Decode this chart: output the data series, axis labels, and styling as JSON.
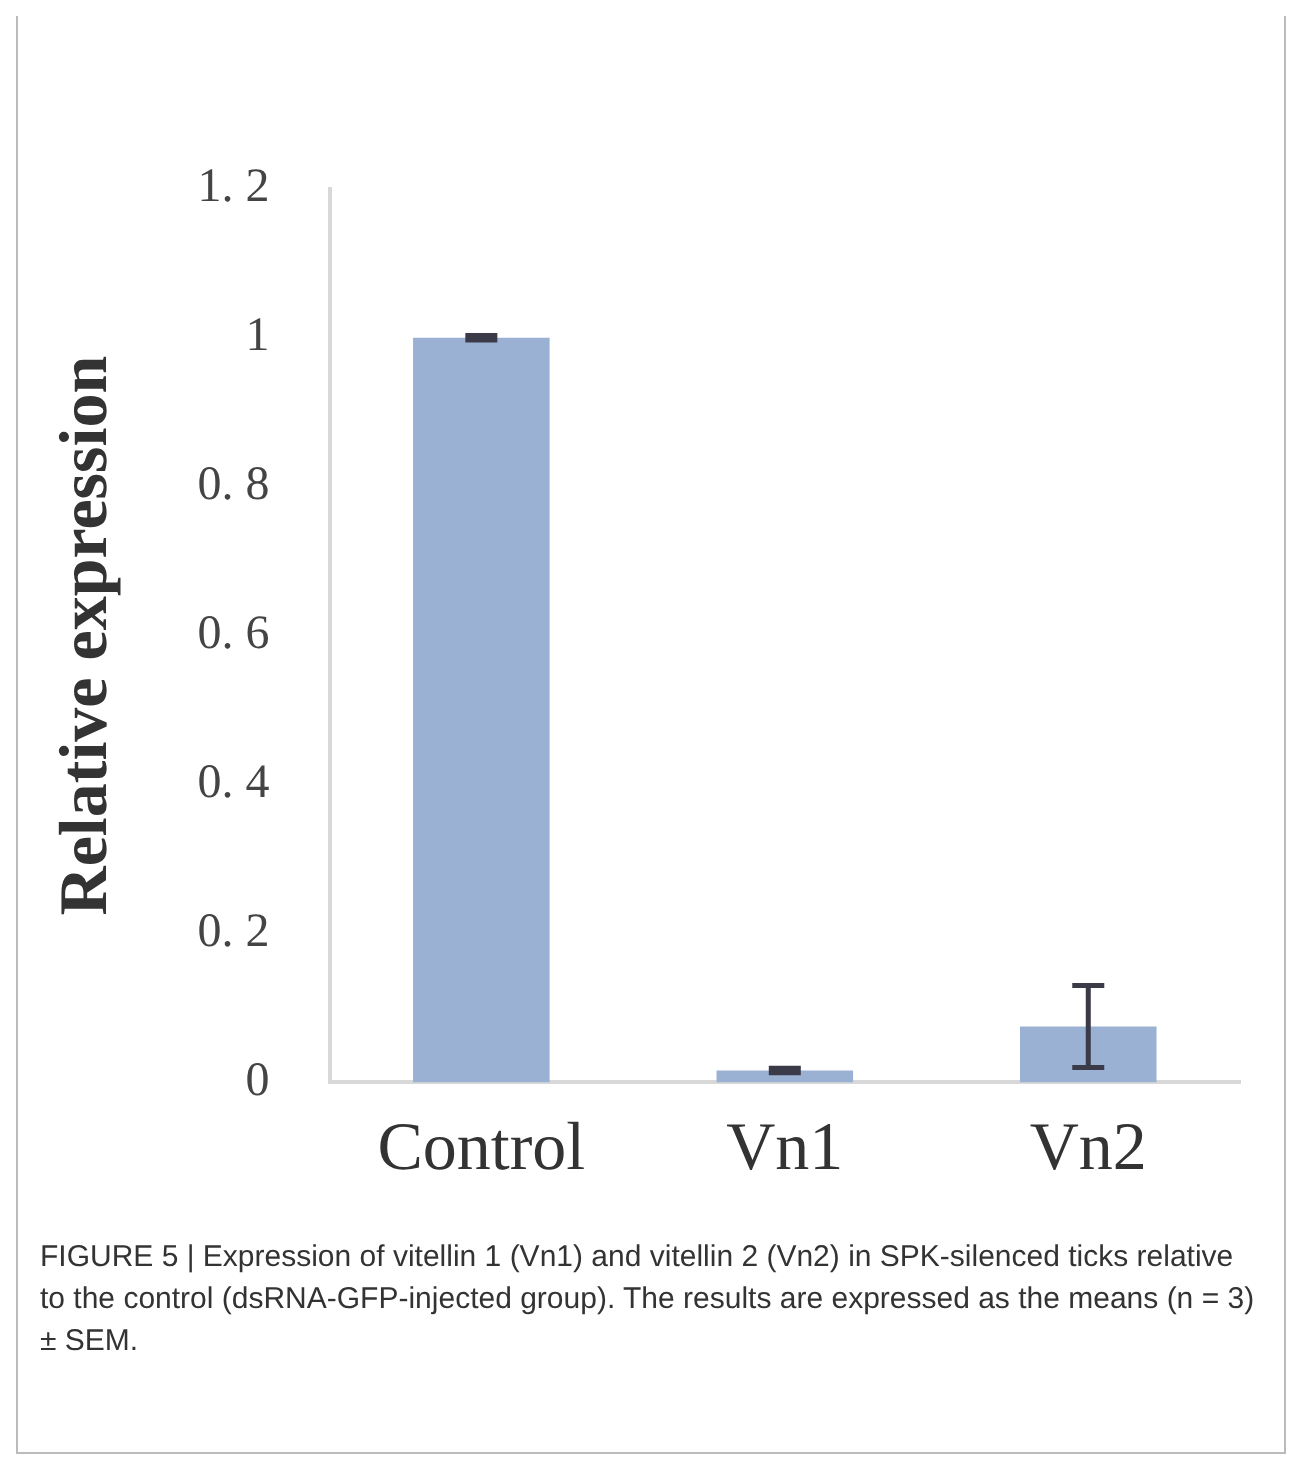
{
  "chart_data": {
    "type": "bar",
    "categories": [
      "Control",
      "Vn1",
      "Vn2"
    ],
    "values": [
      1,
      0.016,
      0.075
    ],
    "errors": [
      0.003,
      0.003,
      0.055
    ],
    "color": "#9bb1d4",
    "ylabel": "Relative expression",
    "ylim": [
      0,
      1.2
    ],
    "yticks": [
      0,
      {
        "value": 0.2,
        "label": "0. 2"
      },
      {
        "value": 0.4,
        "label": "0. 4"
      },
      {
        "value": 0.6,
        "label": "0. 6"
      },
      {
        "value": 0.8,
        "label": "0. 8"
      },
      1,
      {
        "value": 1.2,
        "label": "1. 2"
      }
    ],
    "grid": false,
    "legend": false,
    "annotations": [
      "FIGURE 5 | Expression of vitellin 1 (Vn1) and vitellin 2 (Vn2) in SPK-silenced ticks relative to the control (dsRNA-GFP-injected group). The results are expressed as the means (n = 3) ± SEM."
    ]
  }
}
